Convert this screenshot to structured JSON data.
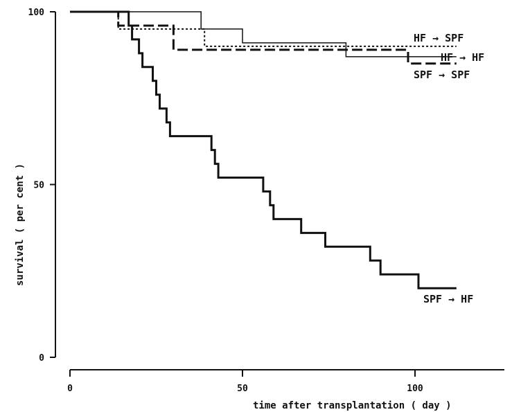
{
  "chart_data": {
    "type": "line",
    "subtype": "step",
    "title": "",
    "xlabel": "time after transplantation ( day )",
    "ylabel": "survival ( per cent )",
    "xlim": [
      0,
      125
    ],
    "ylim": [
      0,
      100
    ],
    "x_ticks": [
      0,
      50,
      100
    ],
    "y_ticks": [
      0,
      50,
      100
    ],
    "x_tick_labels": [
      "0",
      "50",
      "100"
    ],
    "y_tick_labels": [
      "0",
      "50",
      "100"
    ],
    "grid": false,
    "legend": "inline-labels",
    "series": [
      {
        "name": "HF → SPF",
        "style": "dotted",
        "x": [
          0,
          14,
          38,
          39,
          112
        ],
        "y": [
          100,
          95,
          95,
          90,
          90
        ]
      },
      {
        "name": "HF → HF",
        "style": "thin-solid",
        "x": [
          0,
          38,
          50,
          80,
          99,
          112
        ],
        "y": [
          100,
          95,
          91,
          87,
          87,
          87
        ]
      },
      {
        "name": "SPF → SPF",
        "style": "dashed",
        "x": [
          0,
          14,
          30,
          98,
          112
        ],
        "y": [
          100,
          96,
          89,
          85,
          85
        ]
      },
      {
        "name": "SPF → HF",
        "style": "thick-solid",
        "x": [
          0,
          17,
          18,
          20,
          21,
          24,
          25,
          26,
          28,
          29,
          41,
          42,
          43,
          56,
          58,
          59,
          60,
          67,
          74,
          87,
          90,
          101,
          112
        ],
        "y": [
          100,
          96,
          92,
          88,
          84,
          80,
          76,
          72,
          68,
          64,
          60,
          56,
          52,
          48,
          44,
          40,
          40,
          36,
          32,
          28,
          24,
          20,
          20
        ]
      }
    ]
  }
}
